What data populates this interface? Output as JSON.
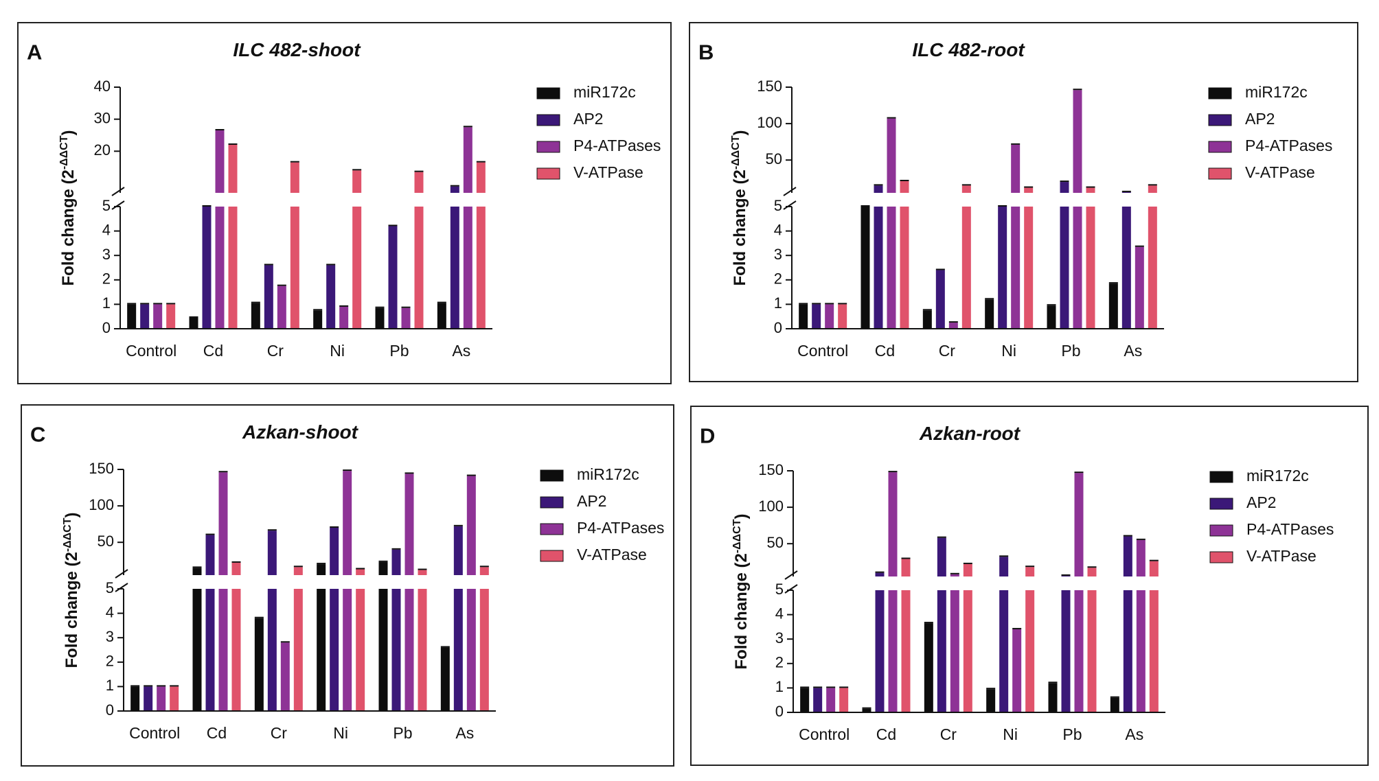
{
  "chart_data": [
    {
      "panel": "A",
      "type": "bar",
      "title": "ILC 482-shoot",
      "ylabel": "Fold change (2^-ΔΔCT)",
      "ylabel_main": "Fold change (2",
      "ylabel_sup": "-ΔΔCT",
      "ylabel_end": ")",
      "categories": [
        "Control",
        "Cd",
        "Cr",
        "Ni",
        "Pb",
        "As"
      ],
      "series": [
        {
          "name": "miR172c",
          "color": "#0d0d0d",
          "values": [
            1,
            0.45,
            1.05,
            0.75,
            0.85,
            1.05
          ]
        },
        {
          "name": "AP2",
          "color": "#3b1878",
          "values": [
            1,
            7,
            2.6,
            2.6,
            4.2,
            9
          ]
        },
        {
          "name": "P4-ATPases",
          "color": "#8e3396",
          "values": [
            1,
            26.5,
            1.75,
            0.9,
            0.85,
            27.5
          ]
        },
        {
          "name": "V-ATPase",
          "color": "#e0536b",
          "values": [
            1,
            22,
            16.5,
            14,
            13.5,
            16.5
          ]
        }
      ],
      "axis": {
        "lower": [
          0,
          5
        ],
        "upper": [
          7,
          40
        ],
        "lower_ticks": [
          0,
          1,
          2,
          3,
          4,
          5
        ],
        "upper_ticks": [
          20,
          30,
          40
        ]
      },
      "legend": "right"
    },
    {
      "panel": "B",
      "type": "bar",
      "title": "ILC 482-root",
      "ylabel": "Fold change (2^-ΔΔCT)",
      "ylabel_main": "Fold change (2",
      "ylabel_sup": "-ΔΔCT",
      "ylabel_end": ")",
      "categories": [
        "Control",
        "Cd",
        "Cr",
        "Ni",
        "Pb",
        "As"
      ],
      "series": [
        {
          "name": "miR172c",
          "color": "#0d0d0d",
          "values": [
            1,
            5,
            0.75,
            1.2,
            0.95,
            1.85
          ]
        },
        {
          "name": "AP2",
          "color": "#3b1878",
          "values": [
            1,
            15,
            2.4,
            5,
            20,
            6
          ]
        },
        {
          "name": "P4-ATPases",
          "color": "#8e3396",
          "values": [
            1,
            107,
            0.25,
            71,
            146,
            3.35
          ]
        },
        {
          "name": "V-ATPase",
          "color": "#e0536b",
          "values": [
            1,
            21,
            15,
            12,
            12,
            15
          ]
        }
      ],
      "axis": {
        "lower": [
          0,
          5
        ],
        "upper": [
          5,
          150
        ],
        "lower_ticks": [
          0,
          1,
          2,
          3,
          4,
          5
        ],
        "upper_ticks": [
          50,
          100,
          150
        ]
      },
      "legend": "right"
    },
    {
      "panel": "C",
      "type": "bar",
      "title": "Azkan-shoot",
      "ylabel": "Fold change (2^-ΔΔCT)",
      "ylabel_main": "Fold change (2",
      "ylabel_sup": "-ΔΔCT",
      "ylabel_end": ")",
      "categories": [
        "Control",
        "Cd",
        "Cr",
        "Ni",
        "Pb",
        "As"
      ],
      "series": [
        {
          "name": "miR172c",
          "color": "#0d0d0d",
          "values": [
            1,
            15,
            3.8,
            20,
            23,
            2.6
          ]
        },
        {
          "name": "AP2",
          "color": "#3b1878",
          "values": [
            1,
            60,
            66,
            70,
            40,
            72
          ]
        },
        {
          "name": "P4-ATPases",
          "color": "#8e3396",
          "values": [
            1,
            146,
            2.8,
            148,
            144,
            141
          ]
        },
        {
          "name": "V-ATPase",
          "color": "#e0536b",
          "values": [
            1,
            22,
            16,
            13,
            12,
            16
          ]
        }
      ],
      "axis": {
        "lower": [
          0,
          5
        ],
        "upper": [
          5,
          150
        ],
        "lower_ticks": [
          0,
          1,
          2,
          3,
          4,
          5
        ],
        "upper_ticks": [
          50,
          100,
          150
        ]
      },
      "legend": "right"
    },
    {
      "panel": "D",
      "type": "bar",
      "title": "Azkan-root",
      "ylabel": "Fold change (2^-ΔΔCT)",
      "ylabel_main": "Fold change (2",
      "ylabel_sup": "-ΔΔCT",
      "ylabel_end": ")",
      "categories": [
        "Control",
        "Cd",
        "Cr",
        "Ni",
        "Pb",
        "As"
      ],
      "series": [
        {
          "name": "miR172c",
          "color": "#0d0d0d",
          "values": [
            1,
            0.15,
            3.65,
            0.95,
            1.2,
            0.6
          ]
        },
        {
          "name": "AP2",
          "color": "#3b1878",
          "values": [
            1,
            10,
            58,
            32,
            6,
            60
          ]
        },
        {
          "name": "P4-ATPases",
          "color": "#8e3396",
          "values": [
            1,
            148,
            8,
            3.4,
            147,
            55
          ]
        },
        {
          "name": "V-ATPase",
          "color": "#e0536b",
          "values": [
            1,
            29,
            22,
            18,
            17,
            26
          ]
        }
      ],
      "axis": {
        "lower": [
          0,
          5
        ],
        "upper": [
          5,
          150
        ],
        "lower_ticks": [
          0,
          1,
          2,
          3,
          4,
          5
        ],
        "upper_ticks": [
          50,
          100,
          150
        ]
      },
      "legend": "right"
    }
  ]
}
